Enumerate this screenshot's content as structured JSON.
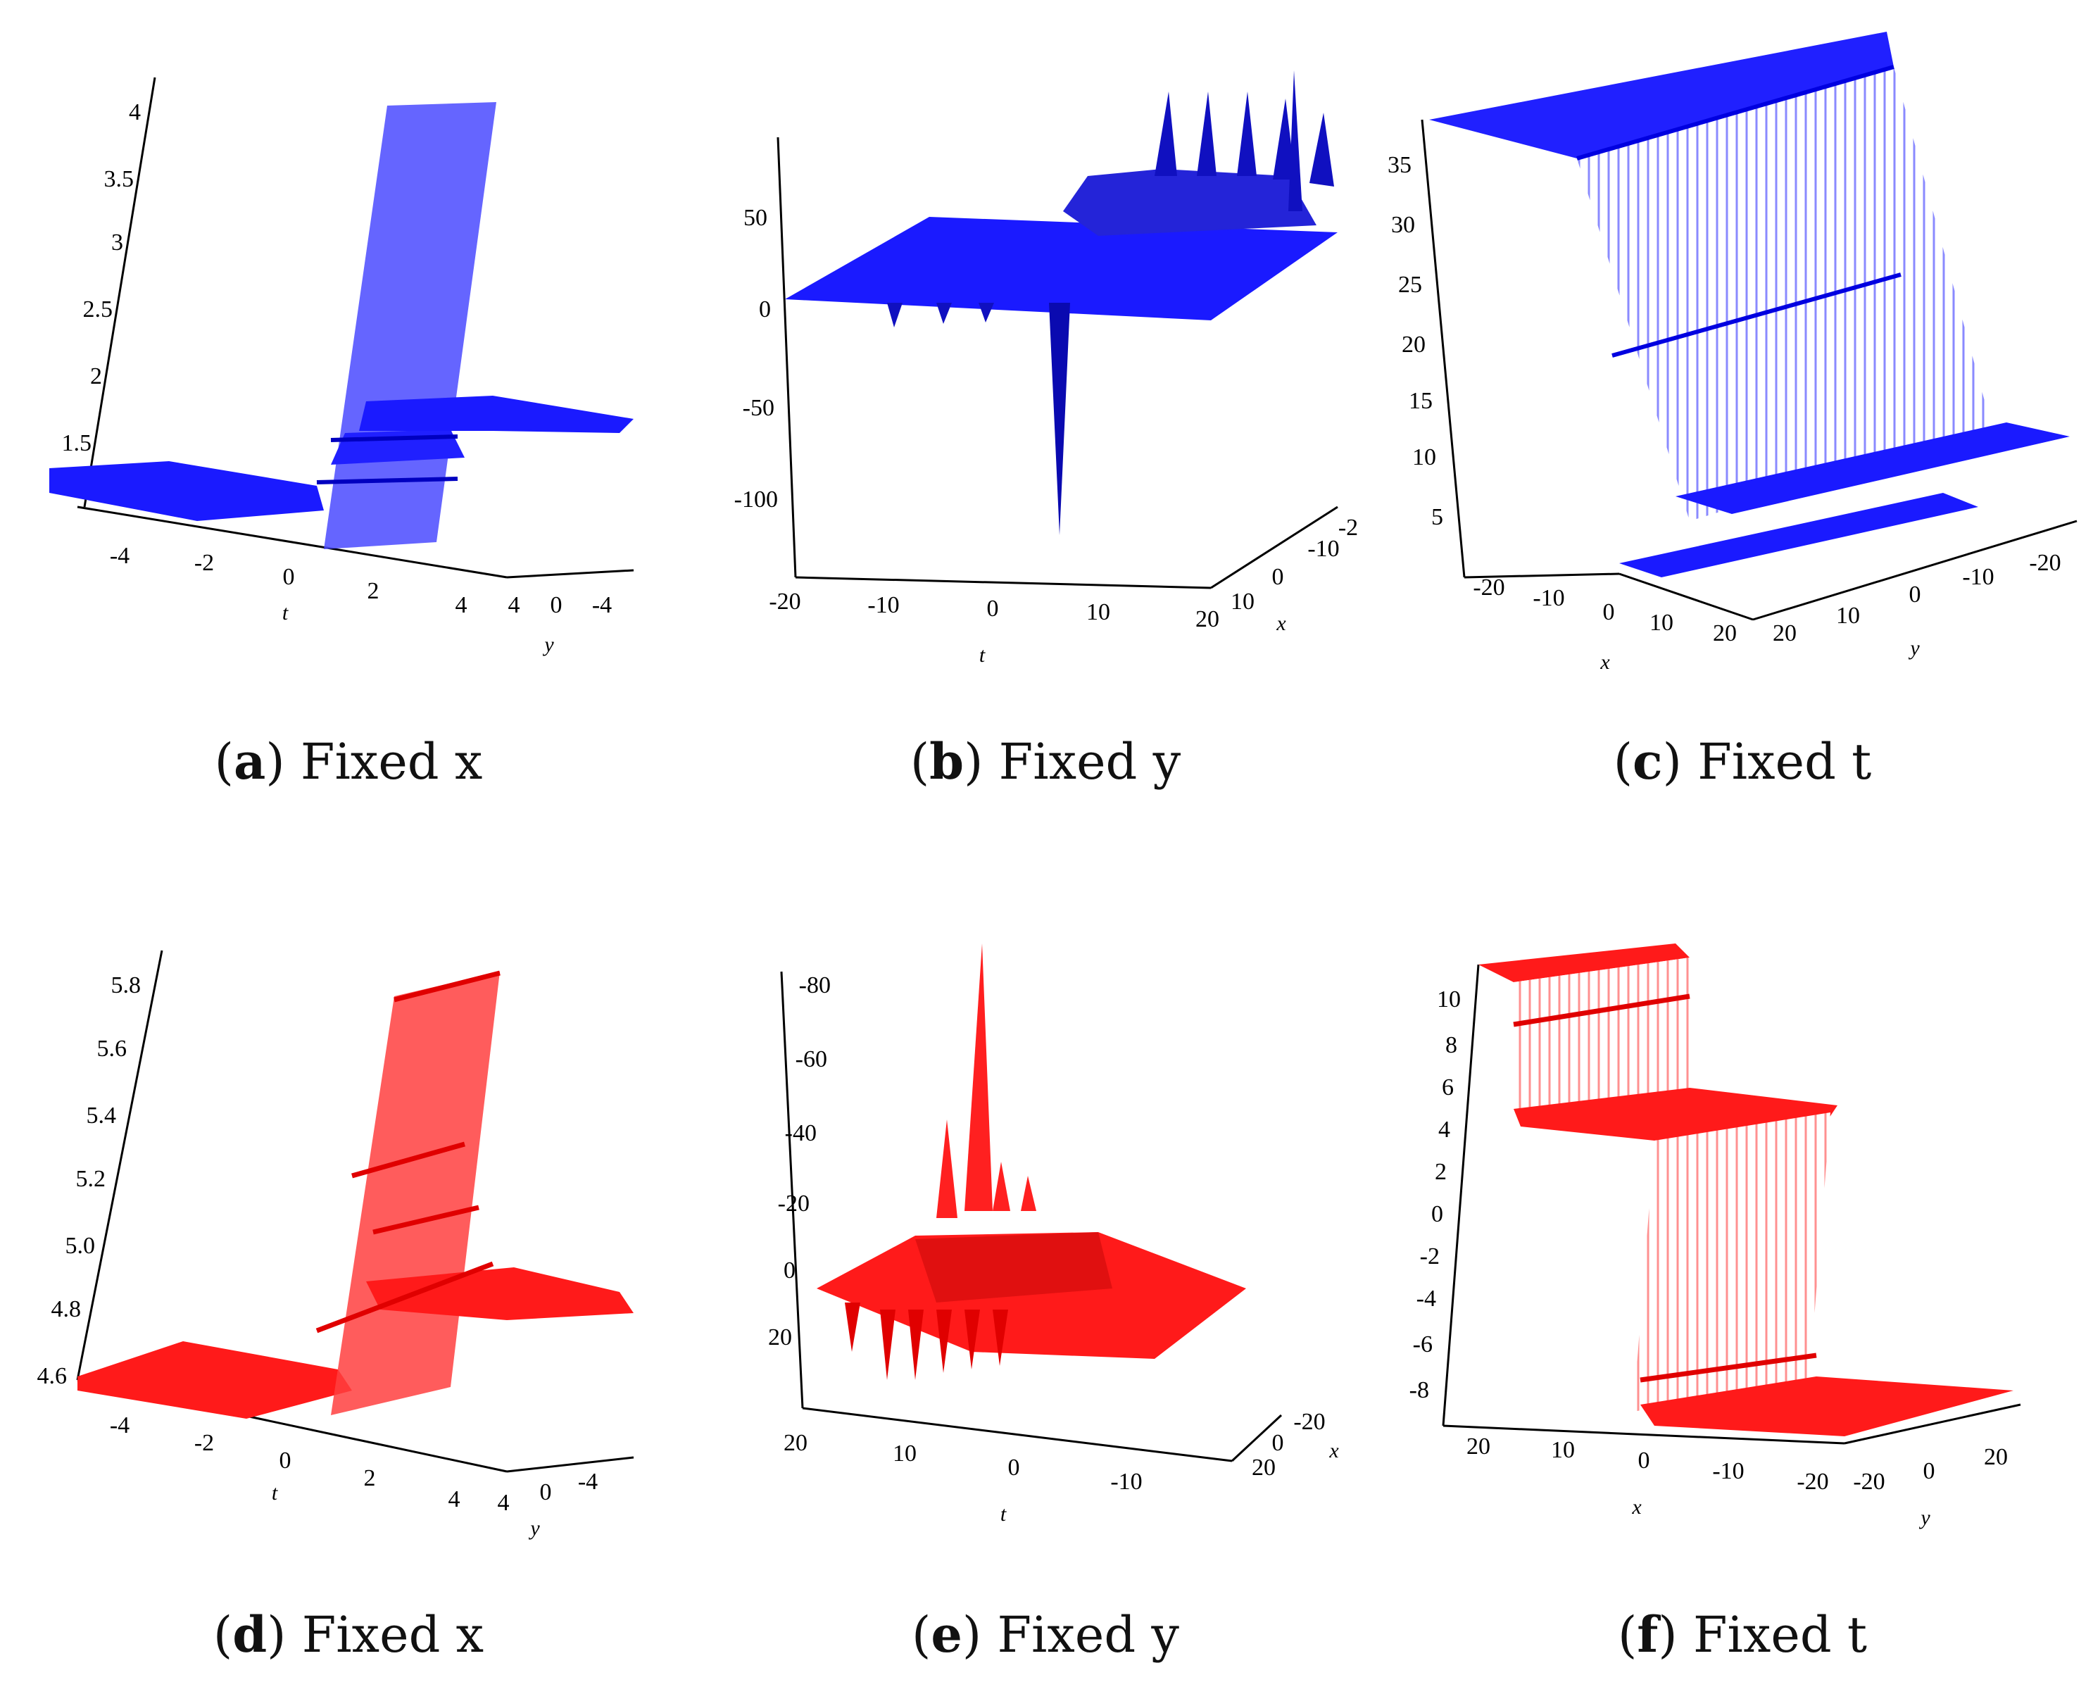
{
  "panels": [
    {
      "letter": "a",
      "title": "Fixed x",
      "color": "#1a1aff",
      "z_axis": {
        "ticks": [
          "4",
          "3.5",
          "3",
          "2.5",
          "2",
          "1.5"
        ]
      },
      "t_axis": {
        "label": "t",
        "ticks": [
          "-4",
          "-2",
          "0",
          "2",
          "4"
        ]
      },
      "y_axis": {
        "label": "y",
        "ticks": [
          "4",
          "0",
          "-4"
        ]
      }
    },
    {
      "letter": "b",
      "title": "Fixed y",
      "color": "#1a1aff",
      "z_axis": {
        "ticks": [
          "50",
          "0",
          "-50",
          "-100"
        ]
      },
      "t_axis": {
        "label": "t",
        "ticks": [
          "-20",
          "-10",
          "0",
          "10",
          "20"
        ]
      },
      "x_axis": {
        "label": "x",
        "ticks": [
          "10",
          "0",
          "-10",
          "-2"
        ]
      }
    },
    {
      "letter": "c",
      "title": "Fixed t",
      "color": "#1a1aff",
      "z_axis": {
        "ticks": [
          "35",
          "30",
          "25",
          "20",
          "15",
          "10",
          "5"
        ]
      },
      "x_axis": {
        "label": "x",
        "ticks": [
          "-20",
          "-10",
          "0",
          "10",
          "20"
        ]
      },
      "y_axis": {
        "label": "y",
        "ticks": [
          "20",
          "10",
          "0",
          "-10",
          "-20"
        ]
      }
    },
    {
      "letter": "d",
      "title": "Fixed x",
      "color": "#ff1a1a",
      "z_axis": {
        "ticks": [
          "5.8",
          "5.6",
          "5.4",
          "5.2",
          "5.0",
          "4.8",
          "4.6"
        ]
      },
      "t_axis": {
        "label": "t",
        "ticks": [
          "-4",
          "-2",
          "0",
          "2",
          "4"
        ]
      },
      "y_axis": {
        "label": "y",
        "ticks": [
          "4",
          "0",
          "-4"
        ]
      }
    },
    {
      "letter": "e",
      "title": "Fixed y",
      "color": "#ff1a1a",
      "z_axis": {
        "ticks": [
          "-80",
          "-60",
          "-40",
          "-20",
          "0",
          "20"
        ]
      },
      "t_axis": {
        "label": "t",
        "ticks": [
          "20",
          "10",
          "0",
          "-10"
        ]
      },
      "x_axis": {
        "label": "x",
        "ticks": [
          "-20",
          "0",
          "20"
        ]
      }
    },
    {
      "letter": "f",
      "title": "Fixed t",
      "color": "#ff1a1a",
      "z_axis": {
        "ticks": [
          "10",
          "8",
          "6",
          "4",
          "2",
          "0",
          "-2",
          "-4",
          "-6",
          "-8"
        ]
      },
      "x_axis": {
        "label": "x",
        "ticks": [
          "20",
          "10",
          "0",
          "-10",
          "-20"
        ]
      },
      "y_axis": {
        "label": "y",
        "ticks": [
          "-20",
          "0",
          "20"
        ]
      }
    }
  ]
}
